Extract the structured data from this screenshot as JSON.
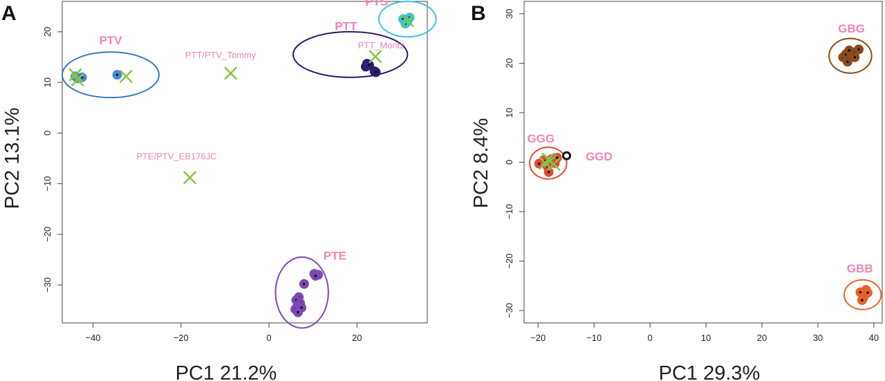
{
  "chart_data": [
    {
      "type": "scatter",
      "panel_label": "A",
      "xlabel": "PC1 21.2%",
      "ylabel": "PC2 13.1%",
      "xlim": [
        -47,
        36
      ],
      "ylim": [
        -37.5,
        26
      ],
      "xticks": [
        -40,
        -20,
        0,
        20
      ],
      "yticks": [
        -30,
        -20,
        -10,
        0,
        10,
        20
      ],
      "colors": {
        "PTV": "#4a8ad6",
        "PTS": "#35c7d9",
        "PTT": "#2e1e6c",
        "PTE": "#7b49b3",
        "cross": "#88c540",
        "label": "#ee86b2"
      },
      "groups": [
        {
          "name": "PTV",
          "color": "#4a8ad6",
          "ellipse": {
            "cx": -36,
            "cy": 11.5,
            "rx": 11,
            "ry": 4.5,
            "color": "#3a78c0"
          },
          "label_at": [
            -36,
            17.5
          ],
          "points": [
            [
              -44,
              11.2
            ],
            [
              -43.5,
              10.8
            ],
            [
              -42.5,
              11.0
            ],
            [
              -34.5,
              11.5
            ]
          ]
        },
        {
          "name": "PTS",
          "color": "#35c7d9",
          "ellipse": {
            "cx": 31.5,
            "cy": 22.5,
            "rx": 6.5,
            "ry": 3.5,
            "color": "#3cc4d8"
          },
          "label_at": [
            24.5,
            25.2
          ],
          "points": [
            [
              30.5,
              22.5
            ],
            [
              31.5,
              22.0
            ],
            [
              32.0,
              22.8
            ],
            [
              31.0,
              21.6
            ]
          ]
        },
        {
          "name": "PTT",
          "color": "#2e1e6c",
          "ellipse": {
            "cx": 18.5,
            "cy": 15.5,
            "rx": 13,
            "ry": 4.5,
            "color": "#2a1a66"
          },
          "label_at": [
            17.5,
            20.3
          ],
          "points": [
            [
              22.3,
              13.7
            ],
            [
              22.0,
              13.1
            ],
            [
              22.8,
              13.4
            ],
            [
              24.0,
              12.2
            ],
            [
              24.3,
              12.0
            ]
          ]
        },
        {
          "name": "PTE",
          "color": "#7b49b3",
          "ellipse": {
            "cx": 7.5,
            "cy": -31.5,
            "rx": 6,
            "ry": 7,
            "color": "#7b49b3"
          },
          "label_at": [
            15,
            -25
          ],
          "points": [
            [
              10.3,
              -27.8
            ],
            [
              11.2,
              -28.0
            ],
            [
              10.6,
              -28.2
            ],
            [
              8.0,
              -29.8
            ],
            [
              6.8,
              -32.4
            ],
            [
              6.2,
              -33.0
            ],
            [
              7.1,
              -33.6
            ],
            [
              6.5,
              -34.2
            ],
            [
              7.4,
              -34.5
            ],
            [
              6.0,
              -34.8
            ],
            [
              6.6,
              -35.4
            ]
          ]
        }
      ],
      "crosses": [
        [
          -44,
          11.5
        ],
        [
          -43.5,
          10.5
        ],
        [
          -32.5,
          11.2
        ],
        [
          -8.7,
          11.8
        ],
        [
          -18,
          -8.8
        ],
        [
          24.2,
          15.1
        ],
        [
          31.5,
          22.2
        ]
      ],
      "annotations": [
        {
          "text": "PTT/PTV_Tommy",
          "at": [
            -11,
            14.8
          ]
        },
        {
          "text": "PTE/PTV_EB176JC",
          "at": [
            -21,
            -5.2
          ]
        },
        {
          "text": "PTT_Moritz",
          "at": [
            25.5,
            16.7
          ]
        }
      ]
    },
    {
      "type": "scatter",
      "panel_label": "B",
      "xlabel": "PC1 29.3%",
      "ylabel": "PC2 8.4%",
      "xlim": [
        -22.5,
        41.5
      ],
      "ylim": [
        -32.5,
        32.5
      ],
      "xticks": [
        -20,
        -10,
        0,
        10,
        20,
        30,
        40
      ],
      "yticks": [
        -30,
        -20,
        -10,
        0,
        10,
        20,
        30
      ],
      "colors": {
        "GGG": "#e04a3a",
        "GGD": "#111111",
        "GBG": "#8b4a1c",
        "GBB": "#e8622a",
        "cross": "#88c540",
        "label": "#ee86b2"
      },
      "groups": [
        {
          "name": "GGG",
          "color": "#e04a3a",
          "ellipse": {
            "cx": -18.2,
            "cy": -0.2,
            "rx": 3.3,
            "ry": 3.2,
            "color": "#e04a3a"
          },
          "label_at": [
            -19.5,
            4
          ],
          "points": [
            [
              -19.8,
              -0.3
            ],
            [
              -19.0,
              0.4
            ],
            [
              -18.3,
              -0.9
            ],
            [
              -17.6,
              0.6
            ],
            [
              -17.0,
              -0.2
            ],
            [
              -18.1,
              -2.0
            ],
            [
              -16.6,
              0.9
            ],
            [
              -18.8,
              0.2
            ]
          ]
        },
        {
          "name": "GBG",
          "color": "#8b4a1c",
          "ellipse": {
            "cx": 35.8,
            "cy": 21.5,
            "rx": 3.8,
            "ry": 3.5,
            "color": "#8b4a1c"
          },
          "label_at": [
            36.0,
            26.2
          ],
          "points": [
            [
              34.5,
              21.2
            ],
            [
              35.0,
              21.8
            ],
            [
              35.3,
              20.3
            ],
            [
              36.3,
              22.2
            ],
            [
              36.6,
              21.2
            ],
            [
              37.3,
              22.8
            ],
            [
              35.6,
              22.6
            ]
          ]
        },
        {
          "name": "GBB",
          "color": "#e8622a",
          "ellipse": {
            "cx": 38.0,
            "cy": -26.8,
            "rx": 3.3,
            "ry": 3.0,
            "color": "#e06a2a"
          },
          "label_at": [
            37.5,
            -22.3
          ],
          "points": [
            [
              37.6,
              -26.3
            ],
            [
              38.2,
              -27.3
            ],
            [
              38.6,
              -25.8
            ],
            [
              37.9,
              -27.9
            ],
            [
              38.9,
              -26.4
            ]
          ]
        }
      ],
      "open_points": [
        {
          "name": "GGD",
          "at": [
            -14.9,
            1.3
          ],
          "color": "#111111",
          "label_at": [
            -11.5,
            1.2
          ]
        }
      ],
      "crosses": [
        [
          -18.7,
          -0.2
        ],
        [
          -17.8,
          0.3
        ],
        [
          -17.2,
          -0.4
        ],
        [
          -18.2,
          0.6
        ]
      ],
      "annotations": []
    }
  ]
}
